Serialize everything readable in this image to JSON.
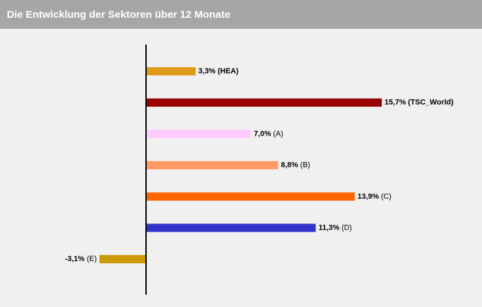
{
  "chart_data": {
    "type": "bar",
    "orientation": "horizontal",
    "title": "Die Entwicklung der Sektoren über 12 Monate",
    "categories": [
      "(HEA)",
      "(TSC_World)",
      "(A)",
      "(B)",
      "(C)",
      "(D)",
      "(E)"
    ],
    "values": [
      3.3,
      15.7,
      7.0,
      8.8,
      13.9,
      11.3,
      -3.1
    ],
    "value_labels": [
      "3,3%",
      "15,7%",
      "7,0%",
      "8,8%",
      "13,9%",
      "11,3%",
      "-3,1%"
    ],
    "colors": [
      "#e09a1a",
      "#990000",
      "#ffccff",
      "#ff9966",
      "#ff6600",
      "#3333cc",
      "#cc9900"
    ],
    "name_bold": [
      true,
      true,
      false,
      false,
      false,
      false,
      false
    ]
  }
}
